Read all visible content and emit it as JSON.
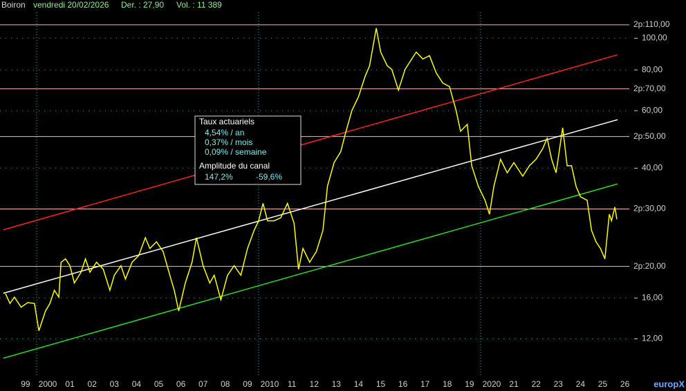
{
  "header": {
    "name": "Boiron",
    "date": "vendredi 20/02/2026",
    "last": "Der. : 27,90",
    "volume": "Vol. : 11 389"
  },
  "info_box": {
    "title": "Taux actuariels",
    "rates": [
      "4,54% / an",
      "0,37% / mois",
      "0,09% / semaine"
    ],
    "amplitude_title": "Amplitude du canal",
    "amplitude": [
      "147,2%",
      "-59,6%"
    ]
  },
  "watermark": "europX",
  "chart_data": {
    "type": "line",
    "log_y": true,
    "xlim": [
      1998.35,
      2026.7
    ],
    "ylim": [
      9.2,
      120
    ],
    "xticks": [
      {
        "value": 1999.5,
        "label": "99"
      },
      {
        "value": 2000.5,
        "label": "2000"
      },
      {
        "value": 2001.5,
        "label": "01"
      },
      {
        "value": 2002.5,
        "label": "02"
      },
      {
        "value": 2003.5,
        "label": "03"
      },
      {
        "value": 2004.5,
        "label": "04"
      },
      {
        "value": 2005.5,
        "label": "05"
      },
      {
        "value": 2006.5,
        "label": "06"
      },
      {
        "value": 2007.5,
        "label": "07"
      },
      {
        "value": 2008.5,
        "label": "08"
      },
      {
        "value": 2009.5,
        "label": "09"
      },
      {
        "value": 2010.5,
        "label": "2010"
      },
      {
        "value": 2011.5,
        "label": "11"
      },
      {
        "value": 2012.5,
        "label": "12"
      },
      {
        "value": 2013.5,
        "label": "13"
      },
      {
        "value": 2014.5,
        "label": "14"
      },
      {
        "value": 2015.5,
        "label": "15"
      },
      {
        "value": 2016.5,
        "label": "16"
      },
      {
        "value": 2017.5,
        "label": "17"
      },
      {
        "value": 2018.5,
        "label": "18"
      },
      {
        "value": 2019.5,
        "label": "19"
      },
      {
        "value": 2020.5,
        "label": "2020"
      },
      {
        "value": 2021.5,
        "label": "21"
      },
      {
        "value": 2022.5,
        "label": "22"
      },
      {
        "value": 2023.5,
        "label": "23"
      },
      {
        "value": 2024.5,
        "label": "24"
      },
      {
        "value": 2025.5,
        "label": "25"
      },
      {
        "value": 2026.5,
        "label": "26"
      }
    ],
    "yticks": [
      {
        "value": 12,
        "label": "12,00"
      },
      {
        "value": 16,
        "label": "16,00"
      },
      {
        "value": 40,
        "label": "40,00"
      },
      {
        "value": 60,
        "label": "60,00"
      },
      {
        "value": 80,
        "label": "80,00"
      },
      {
        "value": 100,
        "label": "100,00"
      }
    ],
    "levels": [
      {
        "value": 20,
        "label": "2p:20,00"
      },
      {
        "value": 30,
        "label": "2p:30,00"
      },
      {
        "value": 50,
        "label": "2p:50,00"
      },
      {
        "value": 70,
        "label": "2p:70,00"
      },
      {
        "value": 110,
        "label": "2p:110,00"
      }
    ],
    "level_color": "#ffb8b8",
    "xgrid": [
      2000,
      2010,
      2020
    ],
    "grid_color": "#2aa8a8",
    "series": [
      {
        "color": "#ffff00",
        "x": [
          1998.6,
          1998.8,
          1999.0,
          1999.3,
          1999.6,
          1999.9,
          2000.1,
          2000.4,
          2000.6,
          2000.8,
          2001.0,
          2001.1,
          2001.3,
          2001.5,
          2001.7,
          2002.0,
          2002.2,
          2002.4,
          2002.7,
          2003.0,
          2003.3,
          2003.5,
          2003.8,
          2004.0,
          2004.3,
          2004.6,
          2004.9,
          2005.1,
          2005.4,
          2005.7,
          2006.0,
          2006.2,
          2006.4,
          2006.7,
          2007.0,
          2007.2,
          2007.5,
          2007.8,
          2008.0,
          2008.3,
          2008.6,
          2008.9,
          2009.2,
          2009.5,
          2009.8,
          2010.0,
          2010.2,
          2010.4,
          2010.7,
          2011.0,
          2011.3,
          2011.6,
          2011.8,
          2012.0,
          2012.3,
          2012.6,
          2012.9,
          2013.1,
          2013.4,
          2013.7,
          2013.9,
          2014.2,
          2014.5,
          2014.8,
          2015.0,
          2015.3,
          2015.5,
          2015.8,
          2016.0,
          2016.3,
          2016.6,
          2016.9,
          2017.1,
          2017.4,
          2017.7,
          2018.0,
          2018.3,
          2018.6,
          2018.9,
          2019.1,
          2019.4,
          2019.6,
          2019.9,
          2020.2,
          2020.4,
          2020.6,
          2020.9,
          2021.2,
          2021.5,
          2021.9,
          2022.2,
          2022.5,
          2022.8,
          2023.0,
          2023.2,
          2023.4,
          2023.7,
          2023.9,
          2024.1,
          2024.3,
          2024.5,
          2024.8,
          2025.0,
          2025.2,
          2025.4,
          2025.6,
          2025.8,
          2025.9,
          2026.05,
          2026.14
        ],
        "values": [
          16.5,
          15.4,
          16.1,
          15.0,
          15.5,
          15.4,
          12.7,
          14.6,
          15.4,
          16.9,
          16.1,
          20.6,
          21.1,
          20.1,
          17.8,
          19.2,
          21.1,
          19.2,
          20.6,
          19.6,
          16.9,
          18.8,
          20.1,
          18.3,
          20.6,
          21.6,
          24.5,
          22.7,
          23.8,
          22.2,
          18.8,
          16.9,
          14.6,
          17.8,
          20.6,
          24.5,
          20.1,
          17.8,
          18.8,
          15.8,
          18.8,
          20.1,
          18.8,
          22.7,
          25.8,
          27.6,
          31.2,
          27.6,
          27.6,
          28.2,
          31.2,
          27.1,
          19.6,
          22.7,
          20.6,
          22.2,
          25.8,
          35.2,
          41.6,
          44.9,
          50.7,
          60.0,
          66.2,
          76.5,
          82.3,
          107.5,
          90.7,
          82.3,
          80.3,
          69.4,
          80.3,
          86.4,
          90.7,
          86.4,
          88.5,
          78.4,
          72.9,
          71.1,
          60.0,
          51.9,
          54.5,
          40.7,
          35.2,
          31.9,
          28.9,
          35.2,
          42.6,
          38.7,
          41.6,
          37.8,
          40.7,
          42.6,
          45.9,
          49.4,
          42.6,
          38.7,
          53.2,
          40.7,
          40.7,
          35.2,
          32.7,
          31.9,
          25.8,
          23.8,
          22.7,
          21.1,
          28.9,
          27.6,
          30.4,
          27.9
        ]
      },
      {
        "color": "#ff2020",
        "x": [
          1998.5,
          2026.17
        ],
        "values": [
          25.9,
          89.0
        ]
      },
      {
        "color": "#ffffff",
        "x": [
          1998.5,
          2026.17
        ],
        "values": [
          16.55,
          56.3
        ]
      },
      {
        "color": "#20e020",
        "x": [
          1998.5,
          2026.17
        ],
        "values": [
          10.47,
          35.8
        ]
      }
    ]
  }
}
